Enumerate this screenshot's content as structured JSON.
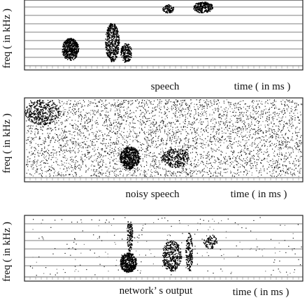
{
  "panels": [
    {
      "caption": "speech",
      "x_label": "time ( in ms )",
      "y_label": "freq ( in kHz )"
    },
    {
      "caption": "noisy speech",
      "x_label": "time ( in ms )",
      "y_label": "freq ( in kHz )"
    },
    {
      "caption": "network’ s output",
      "x_label": "time ( in ms )",
      "y_label": "freq ( in kHz )"
    }
  ]
}
